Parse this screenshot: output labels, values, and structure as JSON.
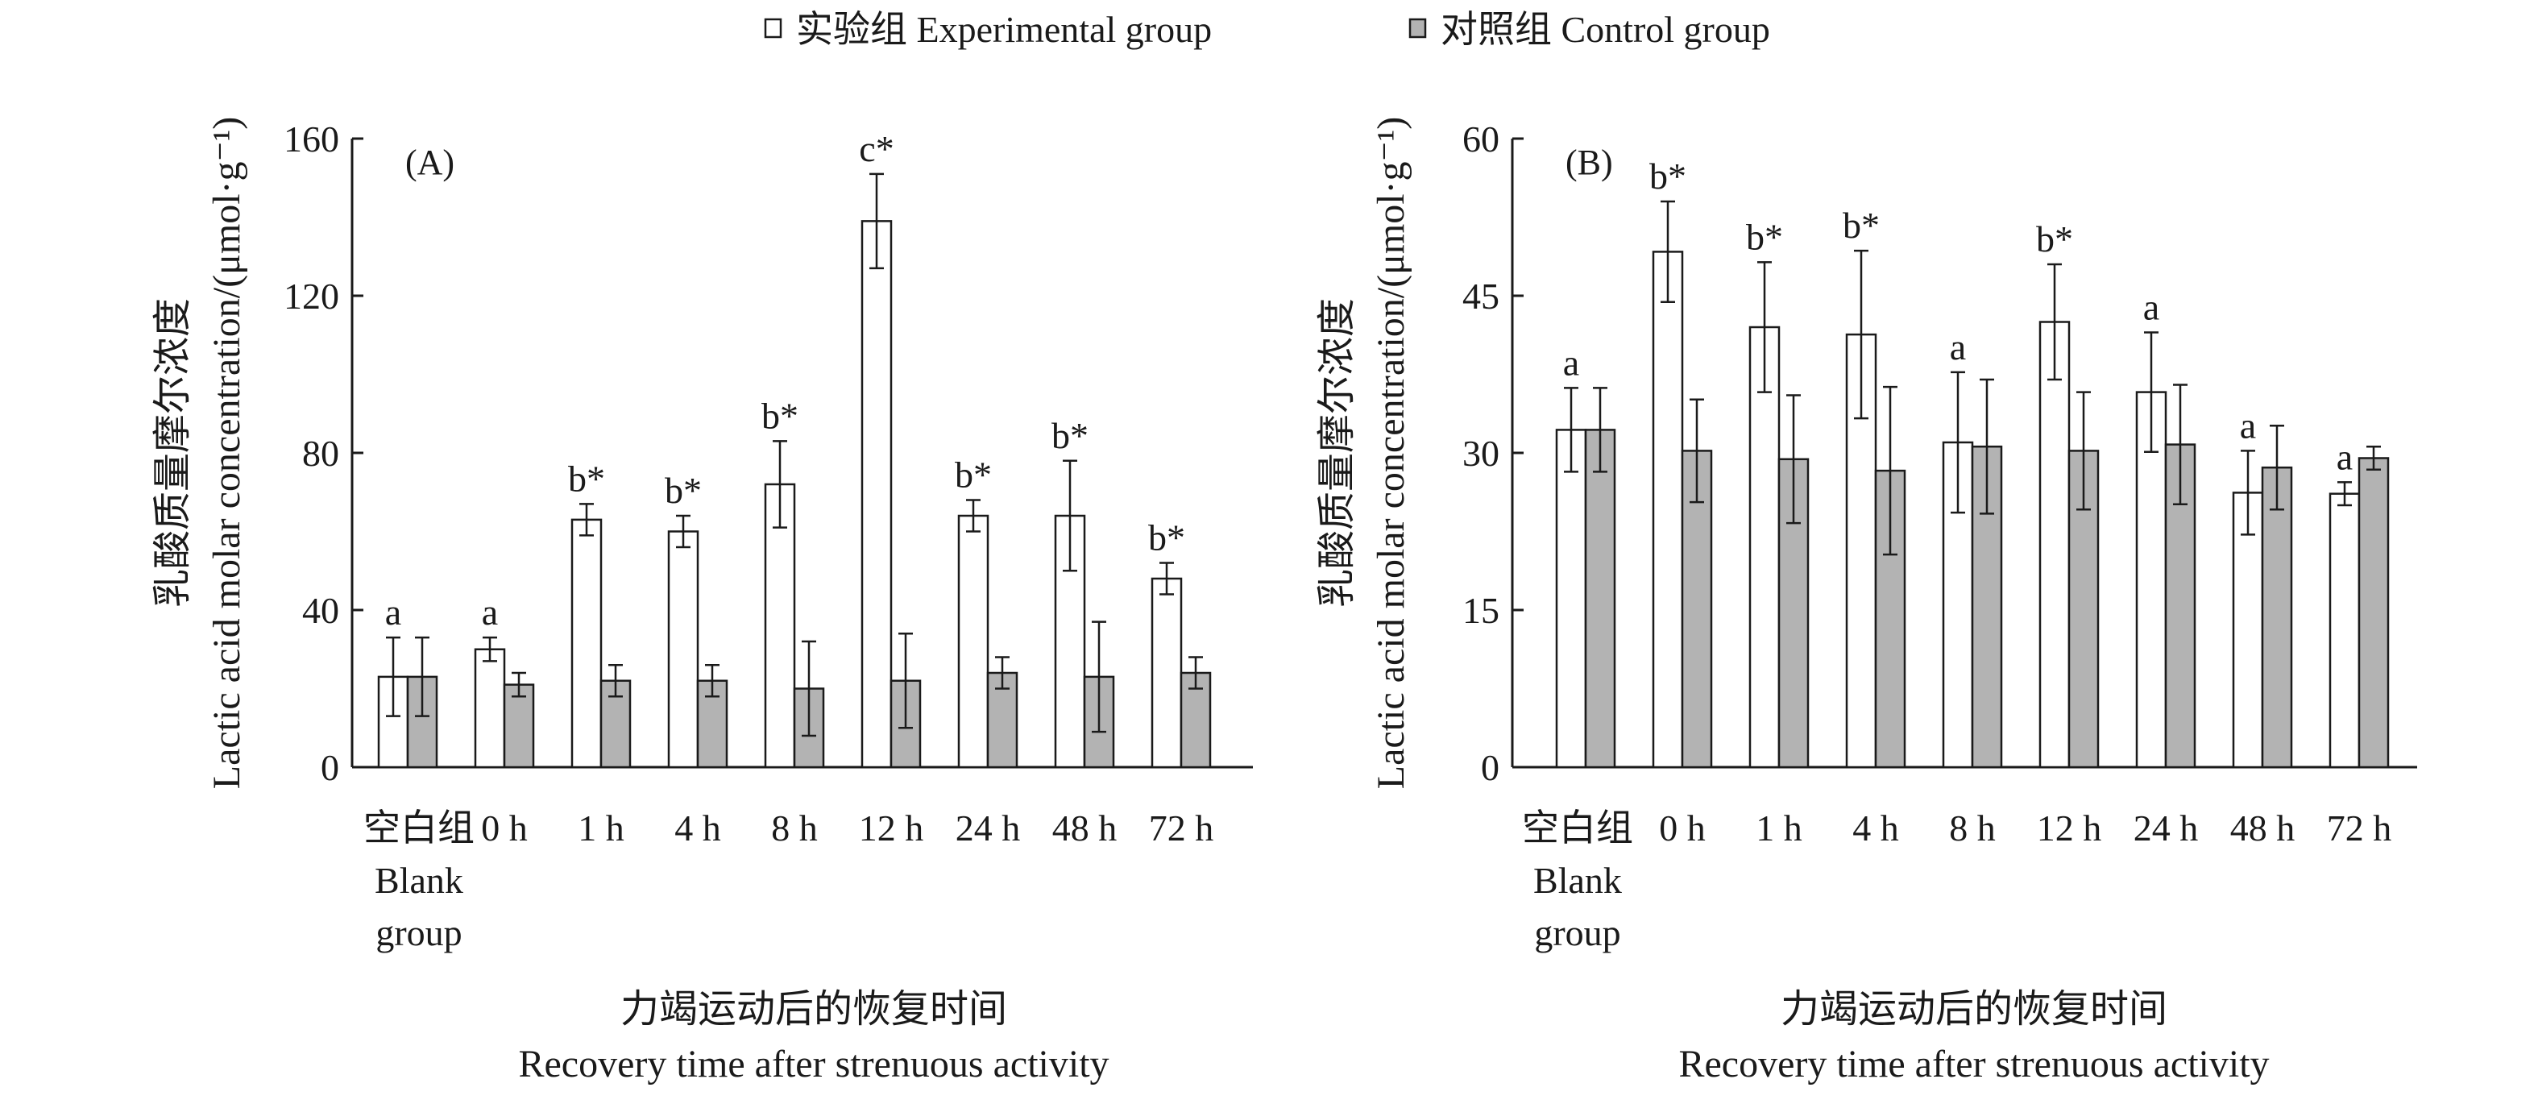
{
  "legend": {
    "experimental": "实验组 Experimental group",
    "control": "对照组 Control group"
  },
  "colors": {
    "experimental": "#ffffff",
    "control": "#b3b3b3",
    "axis": "#1a1a1a"
  },
  "x_axis_title_cn": "力竭运动后的恢复时间",
  "x_axis_title_en": "Recovery time after strenuous activity",
  "y_axis_title_cn": "乳酸质量摩尔浓度",
  "y_axis_title_en": "Lactic acid molar concentration/(μmol·g⁻¹)",
  "chart_data": [
    {
      "type": "bar",
      "panel_label": "(A)",
      "categories": [
        "空白组 Blank group",
        "0 h",
        "1 h",
        "4 h",
        "8 h",
        "12 h",
        "24 h",
        "48 h",
        "72 h"
      ],
      "ylim": [
        0,
        160
      ],
      "yticks": [
        "0",
        "40",
        "80",
        "120",
        "160"
      ],
      "series": [
        {
          "name": "实验组 Experimental group",
          "values": [
            23,
            30,
            63,
            60,
            72,
            139,
            64,
            64,
            48
          ],
          "errors": [
            10,
            3,
            4,
            4,
            11,
            12,
            4,
            14,
            4
          ],
          "annotations": [
            "a",
            "a",
            "b*",
            "b*",
            "b*",
            "c*",
            "b*",
            "b*",
            "b*"
          ]
        },
        {
          "name": "对照组 Control group",
          "values": [
            23,
            21,
            22,
            22,
            20,
            22,
            24,
            23,
            24
          ],
          "errors": [
            10,
            3,
            4,
            4,
            12,
            12,
            4,
            14,
            4
          ]
        }
      ]
    },
    {
      "type": "bar",
      "panel_label": "(B)",
      "categories": [
        "空白组 Blank group",
        "0 h",
        "1 h",
        "4 h",
        "8 h",
        "12 h",
        "24 h",
        "48 h",
        "72 h"
      ],
      "ylim": [
        0,
        60
      ],
      "yticks": [
        "0",
        "15",
        "30",
        "45",
        "60"
      ],
      "series": [
        {
          "name": "实验组 Experimental group",
          "values": [
            32.2,
            49.2,
            42,
            41.3,
            31,
            42.5,
            35.8,
            26.2,
            26.1
          ],
          "errors": [
            4,
            4.8,
            6.2,
            8,
            6.7,
            5.5,
            5.7,
            4,
            1.1
          ],
          "annotations": [
            "a",
            "b*",
            "b*",
            "b*",
            "a",
            "b*",
            "a",
            "a",
            "a"
          ]
        },
        {
          "name": "对照组 Control group",
          "values": [
            32.2,
            30.2,
            29.4,
            28.3,
            30.6,
            30.2,
            30.8,
            28.6,
            29.5
          ],
          "errors": [
            4,
            4.9,
            6.1,
            8,
            6.4,
            5.6,
            5.7,
            4,
            1.1
          ]
        }
      ]
    }
  ]
}
